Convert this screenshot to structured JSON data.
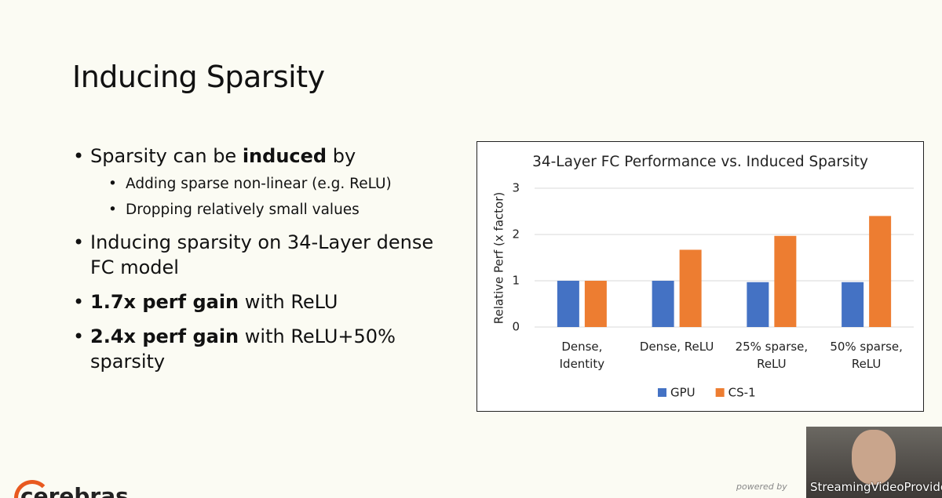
{
  "slide": {
    "title": "Inducing Sparsity",
    "bullets": [
      {
        "level": 1,
        "runs": [
          {
            "text": "Sparsity can be "
          },
          {
            "text": "induced",
            "bold": true
          },
          {
            "text": " by"
          }
        ]
      },
      {
        "level": 2,
        "runs": [
          {
            "text": "Adding sparse non-linear (e.g. ReLU)"
          }
        ]
      },
      {
        "level": 2,
        "runs": [
          {
            "text": "Dropping relatively small values"
          }
        ]
      },
      {
        "level": 1,
        "runs": [
          {
            "text": "Inducing sparsity on 34-Layer dense FC model"
          }
        ]
      },
      {
        "level": 1,
        "runs": [
          {
            "text": "1.7x perf gain",
            "bold": true
          },
          {
            "text": " with ReLU"
          }
        ]
      },
      {
        "level": 1,
        "runs": [
          {
            "text": "2.4x perf gain",
            "bold": true
          },
          {
            "text": " with ReLU+50% sparsity"
          }
        ]
      }
    ],
    "logo": "cerebras",
    "footer": {
      "powered_by": "powered by",
      "provider": "StreamingVideoProvider"
    }
  },
  "chart_data": {
    "type": "bar",
    "title": "34-Layer FC Performance vs. Induced Sparsity",
    "y_label": "Relative Perf (x factor)",
    "categories": [
      "Dense, Identity",
      "Dense, ReLU",
      "25% sparse, ReLU",
      "50% sparse, ReLU"
    ],
    "series": [
      {
        "name": "GPU",
        "color": "#4472c4",
        "values": [
          1,
          1,
          0.97,
          0.97
        ]
      },
      {
        "name": "CS-1",
        "color": "#ed7d31",
        "values": [
          1,
          1.67,
          1.97,
          2.4
        ]
      }
    ],
    "ylim": [
      0,
      3
    ],
    "yticks": [
      0,
      1,
      2,
      3
    ],
    "grid": true,
    "legend": "bottom"
  }
}
